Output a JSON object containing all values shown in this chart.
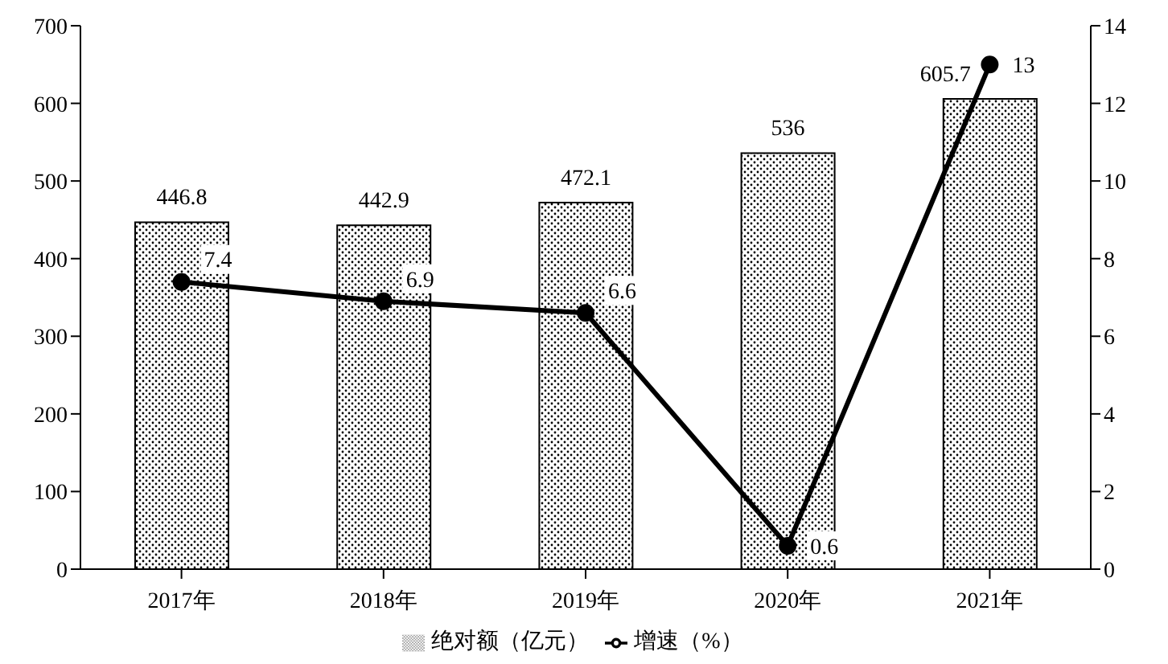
{
  "chart_data": {
    "type": "bar",
    "categories": [
      "2017年",
      "2018年",
      "2019年",
      "2020年",
      "2021年"
    ],
    "series": [
      {
        "name": "绝对额（亿元）",
        "color": "#000000",
        "values": [
          446.8,
          442.9,
          472.1,
          536,
          605.7
        ]
      },
      {
        "name": "增速（%）",
        "type": "line",
        "axis": "y2",
        "color": "#000000",
        "values": [
          7.4,
          6.9,
          6.6,
          0.6,
          13
        ]
      }
    ],
    "ylim": [
      0,
      700
    ],
    "yticks": [
      0,
      100,
      200,
      300,
      400,
      500,
      600,
      700
    ],
    "y2lim": [
      0,
      14
    ],
    "y2ticks": [
      0,
      2,
      4,
      6,
      8,
      10,
      12,
      14
    ],
    "data_labels": true,
    "legend": "bottom",
    "marker": "circle",
    "grid": false
  }
}
